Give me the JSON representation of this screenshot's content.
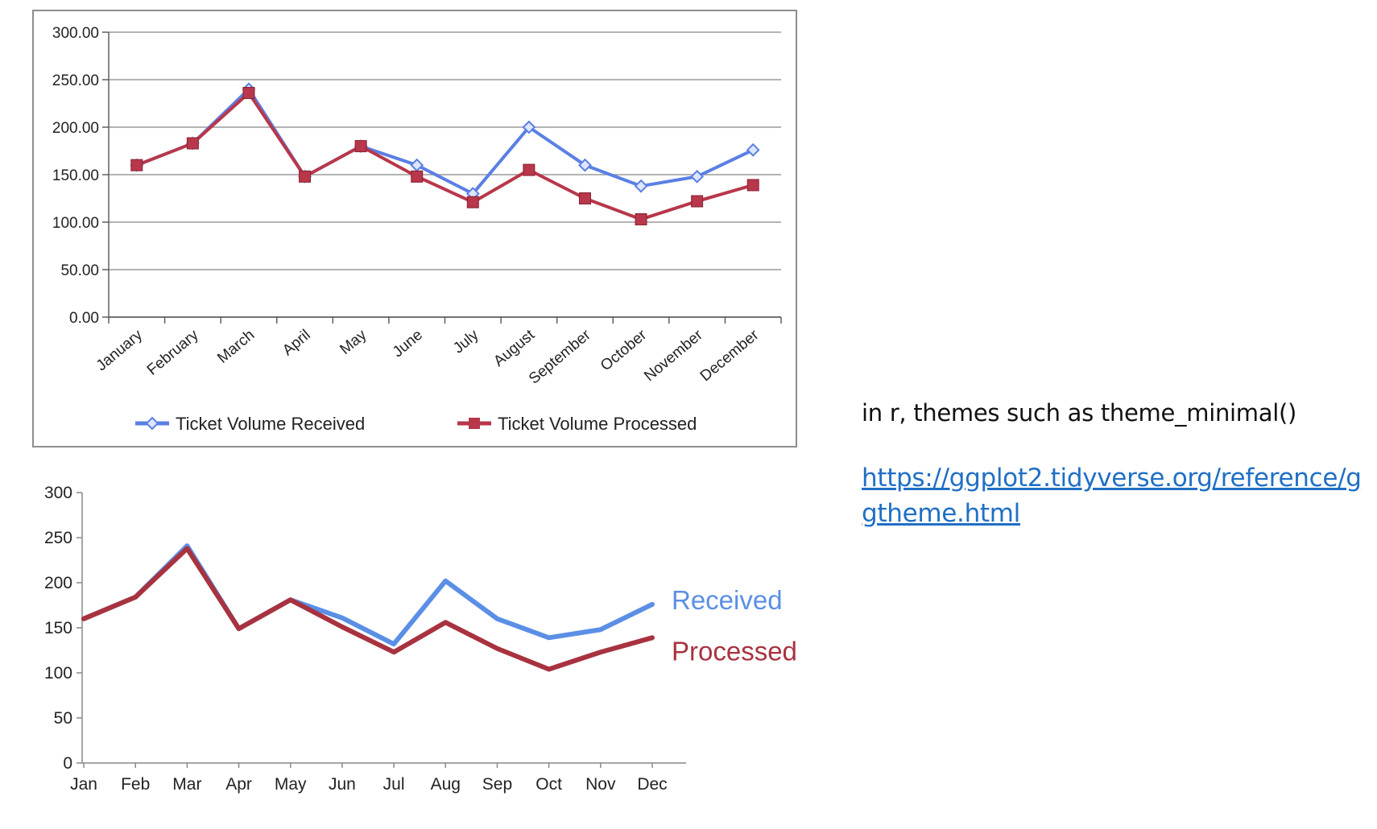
{
  "colors": {
    "received_chart1": "#5b7fe3",
    "processed_chart1": "#b8374a",
    "received_chart2": "#5b8fe6",
    "processed_chart2": "#a8323f",
    "grid": "#9a9a9a",
    "link": "#1f6fc5"
  },
  "chart_data": [
    {
      "type": "line",
      "categories": [
        "January",
        "February",
        "March",
        "April",
        "May",
        "June",
        "July",
        "August",
        "September",
        "October",
        "November",
        "December"
      ],
      "series": [
        {
          "name": "Ticket Volume Received",
          "values": [
            160,
            183,
            240,
            148,
            180,
            160,
            130,
            200,
            160,
            138,
            148,
            176
          ],
          "marker": "diamond"
        },
        {
          "name": "Ticket Volume Processed",
          "values": [
            160,
            183,
            236,
            148,
            180,
            148,
            121,
            155,
            125,
            103,
            122,
            139
          ],
          "marker": "square"
        }
      ],
      "ylim": [
        0,
        300
      ],
      "yticks": [
        "0.00",
        "50.00",
        "100.00",
        "150.00",
        "200.00",
        "250.00",
        "300.00"
      ],
      "grid": true,
      "legend_position": "bottom"
    },
    {
      "type": "line",
      "categories": [
        "Jan",
        "Feb",
        "Mar",
        "Apr",
        "May",
        "Jun",
        "Jul",
        "Aug",
        "Sep",
        "Oct",
        "Nov",
        "Dec"
      ],
      "series": [
        {
          "name": "Received",
          "values": [
            160,
            184,
            241,
            149,
            181,
            161,
            132,
            202,
            160,
            139,
            148,
            176
          ]
        },
        {
          "name": "Processed",
          "values": [
            160,
            184,
            238,
            149,
            181,
            151,
            123,
            156,
            127,
            104,
            123,
            139
          ]
        }
      ],
      "ylim": [
        0,
        300
      ],
      "yticks": [
        "0",
        "50",
        "100",
        "150",
        "200",
        "250",
        "300"
      ],
      "grid": false,
      "legend_position": "direct labels at line ends"
    }
  ],
  "side": {
    "caption": "in r, themes such as theme_minimal()",
    "link": "https://ggplot2.tidyverse.org/reference/ggtheme.html"
  }
}
